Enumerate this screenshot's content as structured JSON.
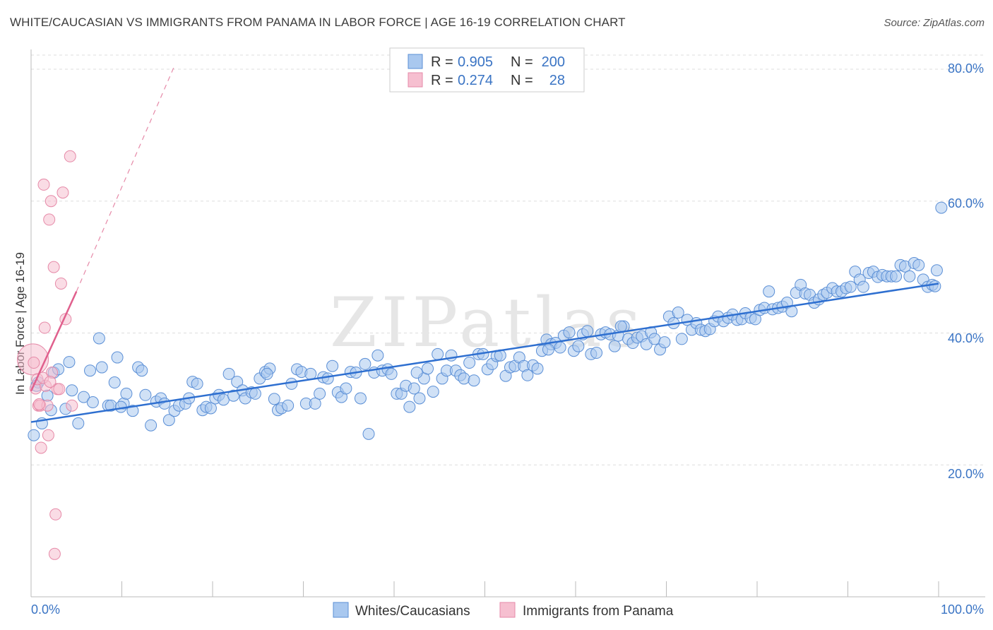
{
  "header": {
    "title": "WHITE/CAUCASIAN VS IMMIGRANTS FROM PANAMA IN LABOR FORCE | AGE 16-19 CORRELATION CHART",
    "source": "Source: ZipAtlas.com"
  },
  "colors": {
    "blue_fill": "#a9c8ef",
    "blue_stroke": "#5b8fd6",
    "blue_line": "#2e6fd0",
    "pink_fill": "#f6bfd0",
    "pink_stroke": "#e68aa8",
    "pink_line": "#e0608d",
    "grid": "#dddddd",
    "tick_text": "#3a74c4"
  },
  "legend": {
    "rows": [
      {
        "r_label": "R =",
        "r_value": "0.905",
        "n_label": "N =",
        "n_value": "200"
      },
      {
        "r_label": "R =",
        "r_value": "0.274",
        "n_label": "N =",
        "n_value": "28"
      }
    ]
  },
  "bottom_legend": {
    "items": [
      "Whites/Caucasians",
      "Immigrants from Panama"
    ]
  },
  "watermark": "ZIPatlas",
  "chart_data": {
    "type": "scatter",
    "title": "WHITE/CAUCASIAN VS IMMIGRANTS FROM PANAMA IN LABOR FORCE | AGE 16-19 CORRELATION CHART",
    "xlabel": "",
    "ylabel": "In Labor Force | Age 16-19",
    "xlim": [
      0,
      100
    ],
    "ylim": [
      0,
      83
    ],
    "x_tick_labels": [
      "0.0%",
      "100.0%"
    ],
    "y_ticks": [
      20,
      40,
      60,
      80
    ],
    "y_tick_labels": [
      "20.0%",
      "40.0%",
      "60.0%",
      "80.0%"
    ],
    "legend_position": "top-center",
    "series": [
      {
        "name": "Whites/Caucasians",
        "r": 0.905,
        "n": 200,
        "trend": {
          "x0": 0,
          "y0": 26.5,
          "x1": 100,
          "y1": 47.5
        },
        "points": [
          [
            0.3,
            24.5
          ],
          [
            0.8,
            32.5
          ],
          [
            1.2,
            26.3
          ],
          [
            1.8,
            30.5
          ],
          [
            2.2,
            28.3
          ],
          [
            2.5,
            34.0
          ],
          [
            3.0,
            34.5
          ],
          [
            3.8,
            28.5
          ],
          [
            4.2,
            35.6
          ],
          [
            4.5,
            31.3
          ],
          [
            5.2,
            26.3
          ],
          [
            5.8,
            30.3
          ],
          [
            6.5,
            34.3
          ],
          [
            6.8,
            29.5
          ],
          [
            7.5,
            39.2
          ],
          [
            7.8,
            34.8
          ],
          [
            8.5,
            29.0
          ],
          [
            8.8,
            29.0
          ],
          [
            9.2,
            32.5
          ],
          [
            9.5,
            36.3
          ],
          [
            10.2,
            29.3
          ],
          [
            10.5,
            30.8
          ],
          [
            11.2,
            28.2
          ],
          [
            11.8,
            34.8
          ],
          [
            12.2,
            34.3
          ],
          [
            12.6,
            30.6
          ],
          [
            13.2,
            26.0
          ],
          [
            13.8,
            29.6
          ],
          [
            14.3,
            30.1
          ],
          [
            14.7,
            29.3
          ],
          [
            15.2,
            26.8
          ],
          [
            15.8,
            28.2
          ],
          [
            16.3,
            29.0
          ],
          [
            17.0,
            29.3
          ],
          [
            17.4,
            30.1
          ],
          [
            17.8,
            32.6
          ],
          [
            18.3,
            32.3
          ],
          [
            18.9,
            28.3
          ],
          [
            19.3,
            28.8
          ],
          [
            19.8,
            28.6
          ],
          [
            20.3,
            30.1
          ],
          [
            20.7,
            30.6
          ],
          [
            21.2,
            29.9
          ],
          [
            21.8,
            33.8
          ],
          [
            22.3,
            30.5
          ],
          [
            22.7,
            32.6
          ],
          [
            23.3,
            31.3
          ],
          [
            23.6,
            30.1
          ],
          [
            24.3,
            31.0
          ],
          [
            24.7,
            30.8
          ],
          [
            25.2,
            33.1
          ],
          [
            25.8,
            34.1
          ],
          [
            26.3,
            34.6
          ],
          [
            26.8,
            30.0
          ],
          [
            27.2,
            28.3
          ],
          [
            27.6,
            28.6
          ],
          [
            28.3,
            29.0
          ],
          [
            28.7,
            32.3
          ],
          [
            29.3,
            34.5
          ],
          [
            29.8,
            34.1
          ],
          [
            30.3,
            29.3
          ],
          [
            30.8,
            33.8
          ],
          [
            31.3,
            29.3
          ],
          [
            31.8,
            30.8
          ],
          [
            32.2,
            33.3
          ],
          [
            32.7,
            33.1
          ],
          [
            33.2,
            35.0
          ],
          [
            33.8,
            31.0
          ],
          [
            34.2,
            30.3
          ],
          [
            34.7,
            31.6
          ],
          [
            35.2,
            34.1
          ],
          [
            35.8,
            34.0
          ],
          [
            36.3,
            30.1
          ],
          [
            36.8,
            35.3
          ],
          [
            37.2,
            24.7
          ],
          [
            37.8,
            34.0
          ],
          [
            38.2,
            36.6
          ],
          [
            38.7,
            34.3
          ],
          [
            39.3,
            34.5
          ],
          [
            39.7,
            33.8
          ],
          [
            40.3,
            30.8
          ],
          [
            40.8,
            30.8
          ],
          [
            41.3,
            32.0
          ],
          [
            41.7,
            28.8
          ],
          [
            42.2,
            31.6
          ],
          [
            42.8,
            30.1
          ],
          [
            43.3,
            33.1
          ],
          [
            43.7,
            34.6
          ],
          [
            44.3,
            31.1
          ],
          [
            44.8,
            36.8
          ],
          [
            45.3,
            33.1
          ],
          [
            45.8,
            34.3
          ],
          [
            46.3,
            36.6
          ],
          [
            46.8,
            34.3
          ],
          [
            47.3,
            33.6
          ],
          [
            47.7,
            33.1
          ],
          [
            48.3,
            35.5
          ],
          [
            48.8,
            32.8
          ],
          [
            49.3,
            36.8
          ],
          [
            49.8,
            36.8
          ],
          [
            50.3,
            34.5
          ],
          [
            50.8,
            35.3
          ],
          [
            51.3,
            36.5
          ],
          [
            51.7,
            36.6
          ],
          [
            52.3,
            33.5
          ],
          [
            52.8,
            34.8
          ],
          [
            53.3,
            35.0
          ],
          [
            53.8,
            36.3
          ],
          [
            54.3,
            35.0
          ],
          [
            54.7,
            33.6
          ],
          [
            55.3,
            35.1
          ],
          [
            55.8,
            34.6
          ],
          [
            56.3,
            37.3
          ],
          [
            56.8,
            39.0
          ],
          [
            57.3,
            38.3
          ],
          [
            57.8,
            38.5
          ],
          [
            58.3,
            37.8
          ],
          [
            58.7,
            39.6
          ],
          [
            59.3,
            40.1
          ],
          [
            59.8,
            37.3
          ],
          [
            60.3,
            38.0
          ],
          [
            60.8,
            39.8
          ],
          [
            61.3,
            40.3
          ],
          [
            61.7,
            36.8
          ],
          [
            62.3,
            37.0
          ],
          [
            62.8,
            39.8
          ],
          [
            63.3,
            40.1
          ],
          [
            63.8,
            39.8
          ],
          [
            64.3,
            38.0
          ],
          [
            64.7,
            39.6
          ],
          [
            65.3,
            41.0
          ],
          [
            65.8,
            39.1
          ],
          [
            66.3,
            38.5
          ],
          [
            66.8,
            39.3
          ],
          [
            67.3,
            39.5
          ],
          [
            67.8,
            38.3
          ],
          [
            68.3,
            40.1
          ],
          [
            68.7,
            39.1
          ],
          [
            69.3,
            37.5
          ],
          [
            69.8,
            38.6
          ],
          [
            70.3,
            42.5
          ],
          [
            70.8,
            41.5
          ],
          [
            71.3,
            43.1
          ],
          [
            71.7,
            39.1
          ],
          [
            72.3,
            42.0
          ],
          [
            72.8,
            40.5
          ],
          [
            73.3,
            41.5
          ],
          [
            73.8,
            40.5
          ],
          [
            74.3,
            40.3
          ],
          [
            74.8,
            40.6
          ],
          [
            75.3,
            41.8
          ],
          [
            75.7,
            42.5
          ],
          [
            76.3,
            41.8
          ],
          [
            76.8,
            42.3
          ],
          [
            77.3,
            42.8
          ],
          [
            77.8,
            42.0
          ],
          [
            78.3,
            42.1
          ],
          [
            78.7,
            43.0
          ],
          [
            79.3,
            42.3
          ],
          [
            79.8,
            42.1
          ],
          [
            80.3,
            43.5
          ],
          [
            80.8,
            43.8
          ],
          [
            81.3,
            46.3
          ],
          [
            81.7,
            43.6
          ],
          [
            82.3,
            43.8
          ],
          [
            82.8,
            44.0
          ],
          [
            83.3,
            44.6
          ],
          [
            83.8,
            43.3
          ],
          [
            84.3,
            46.1
          ],
          [
            84.8,
            47.3
          ],
          [
            85.3,
            46.0
          ],
          [
            85.8,
            45.8
          ],
          [
            86.3,
            44.6
          ],
          [
            86.8,
            45.1
          ],
          [
            87.3,
            45.8
          ],
          [
            87.7,
            46.1
          ],
          [
            88.3,
            46.8
          ],
          [
            88.8,
            46.3
          ],
          [
            89.3,
            46.3
          ],
          [
            89.8,
            46.8
          ],
          [
            90.3,
            47.0
          ],
          [
            90.8,
            49.3
          ],
          [
            91.3,
            48.1
          ],
          [
            91.7,
            47.0
          ],
          [
            92.3,
            49.1
          ],
          [
            92.8,
            49.3
          ],
          [
            93.3,
            48.5
          ],
          [
            93.8,
            48.8
          ],
          [
            94.3,
            48.6
          ],
          [
            94.8,
            48.6
          ],
          [
            95.3,
            48.6
          ],
          [
            95.8,
            50.3
          ],
          [
            96.3,
            50.1
          ],
          [
            96.8,
            48.6
          ],
          [
            97.3,
            50.6
          ],
          [
            97.8,
            50.3
          ],
          [
            98.3,
            48.1
          ],
          [
            98.8,
            47.0
          ],
          [
            99.3,
            47.3
          ],
          [
            99.8,
            49.5
          ],
          [
            100.3,
            59.0
          ],
          [
            99.6,
            47.1
          ],
          [
            0.6,
            32.0
          ],
          [
            9.9,
            28.8
          ],
          [
            26.0,
            33.8
          ],
          [
            42.5,
            34.0
          ],
          [
            57.0,
            37.5
          ],
          [
            65.0,
            41.0
          ]
        ]
      },
      {
        "name": "Immigrants from Panama",
        "r": 0.274,
        "n": 28,
        "trend": {
          "x0": 0,
          "y0": 31.2,
          "x1": 5,
          "y1": 46.3,
          "dashed_to_x": 15.8,
          "dashed_to_y": 80.5
        },
        "points": [
          [
            0.2,
            36.0
          ],
          [
            0.3,
            35.5
          ],
          [
            0.5,
            31.6
          ],
          [
            0.7,
            33.0
          ],
          [
            0.8,
            29.0
          ],
          [
            1.0,
            29.0
          ],
          [
            1.1,
            22.6
          ],
          [
            1.4,
            62.5
          ],
          [
            1.5,
            40.8
          ],
          [
            1.6,
            32.0
          ],
          [
            1.8,
            29.0
          ],
          [
            1.9,
            24.5
          ],
          [
            2.0,
            57.2
          ],
          [
            2.2,
            60.0
          ],
          [
            2.3,
            34.0
          ],
          [
            2.5,
            50.0
          ],
          [
            2.7,
            12.5
          ],
          [
            2.6,
            6.5
          ],
          [
            2.9,
            31.5
          ],
          [
            3.1,
            31.5
          ],
          [
            3.3,
            47.5
          ],
          [
            3.5,
            61.3
          ],
          [
            3.8,
            42.1
          ],
          [
            4.3,
            66.8
          ],
          [
            4.5,
            29.0
          ],
          [
            0.9,
            29.2
          ],
          [
            1.3,
            33.2
          ],
          [
            2.1,
            32.6
          ]
        ]
      }
    ]
  }
}
